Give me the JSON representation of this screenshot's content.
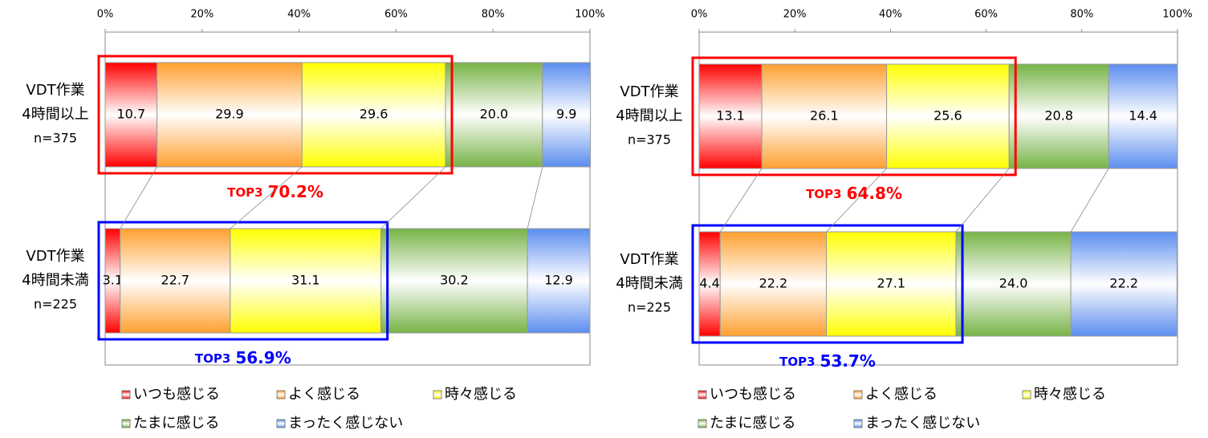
{
  "chart_data": [
    {
      "type": "stacked-bar-horizontal",
      "categories": [
        [
          "VDT作業",
          "4時間以上",
          "n=375"
        ],
        [
          "VDT作業",
          "4時間未満",
          "n=225"
        ]
      ],
      "series": [
        {
          "name": "いつも感じる",
          "color": "#ff0000",
          "values": [
            10.7,
            3.1
          ],
          "value_labels": [
            "10.7",
            "3.1"
          ]
        },
        {
          "name": "よく感じる",
          "color": "#ffa030",
          "values": [
            29.9,
            22.7
          ],
          "value_labels": [
            "29.9",
            "22.7"
          ]
        },
        {
          "name": "時々感じる",
          "color": "#ffff00",
          "values": [
            29.6,
            31.1
          ],
          "value_labels": [
            "29.6",
            "31.1"
          ]
        },
        {
          "name": "たまに感じる",
          "color": "#77b347",
          "values": [
            20.0,
            30.2
          ],
          "value_labels": [
            "20.0",
            "30.2"
          ]
        },
        {
          "name": "まったく感じない",
          "color": "#5b8def",
          "values": [
            9.9,
            12.9
          ],
          "value_labels": [
            "9.9",
            "12.9"
          ]
        }
      ],
      "xlim": [
        0,
        100
      ],
      "xticks": [
        {
          "value": 0,
          "label": "0%"
        },
        {
          "value": 20,
          "label": "20%"
        },
        {
          "value": 40,
          "label": "40%"
        },
        {
          "value": 60,
          "label": "60%"
        },
        {
          "value": 80,
          "label": "80%"
        },
        {
          "value": 100,
          "label": "100%"
        }
      ],
      "top3": {
        "label": "TOP3",
        "values": [
          70.2,
          56.9
        ],
        "value_labels": [
          "70.2%",
          "56.9%"
        ],
        "colors": [
          "#ff0000",
          "#0000ff"
        ]
      }
    },
    {
      "type": "stacked-bar-horizontal",
      "categories": [
        [
          "VDT作業",
          "4時間以上",
          "n=375"
        ],
        [
          "VDT作業",
          "4時間未満",
          "n=225"
        ]
      ],
      "series": [
        {
          "name": "いつも感じる",
          "color": "#ff0000",
          "values": [
            13.1,
            4.4
          ],
          "value_labels": [
            "13.1",
            "4.4"
          ]
        },
        {
          "name": "よく感じる",
          "color": "#ffa030",
          "values": [
            26.1,
            22.2
          ],
          "value_labels": [
            "26.1",
            "22.2"
          ]
        },
        {
          "name": "時々感じる",
          "color": "#ffff00",
          "values": [
            25.6,
            27.1
          ],
          "value_labels": [
            "25.6",
            "27.1"
          ]
        },
        {
          "name": "たまに感じる",
          "color": "#77b347",
          "values": [
            20.8,
            24.0
          ],
          "value_labels": [
            "20.8",
            "24.0"
          ]
        },
        {
          "name": "まったく感じない",
          "color": "#5b8def",
          "values": [
            14.4,
            22.2
          ],
          "value_labels": [
            "14.4",
            "22.2"
          ]
        }
      ],
      "xlim": [
        0,
        100
      ],
      "xticks": [
        {
          "value": 0,
          "label": "0%"
        },
        {
          "value": 20,
          "label": "20%"
        },
        {
          "value": 40,
          "label": "40%"
        },
        {
          "value": 60,
          "label": "60%"
        },
        {
          "value": 80,
          "label": "80%"
        },
        {
          "value": 100,
          "label": "100%"
        }
      ],
      "top3": {
        "label": "TOP3",
        "values": [
          64.8,
          53.7
        ],
        "value_labels": [
          "64.8%",
          "53.7%"
        ],
        "colors": [
          "#ff0000",
          "#0000ff"
        ]
      }
    }
  ]
}
